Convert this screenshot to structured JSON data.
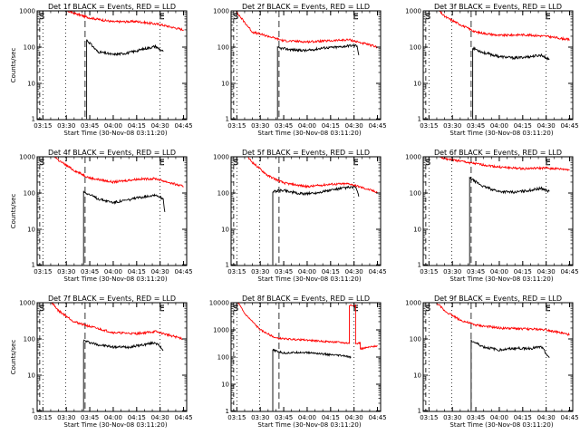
{
  "colors": {
    "events": "#000000",
    "lld": "#ff0000",
    "background": "#ffffff",
    "axes": "#000000"
  },
  "chart_data": [
    {
      "type": "line",
      "title": "Det 1f BLACK = Events, RED = LLD",
      "xlabel": "Start Time (30-Nov-08 03:11:20)",
      "ylabel": "Counts/sec",
      "yscale": "log",
      "ylim": [
        1,
        1000
      ],
      "xlim": [
        "03:11:20",
        "04:47:00"
      ],
      "x_ticks": [
        "03:15",
        "03:30",
        "03:45",
        "04:00",
        "04:15",
        "04:30",
        "04:45"
      ],
      "y_ticks": [
        "1",
        "10",
        "100",
        "1000"
      ],
      "markers": [
        {
          "label": "S",
          "time": "03:15"
        },
        {
          "label": "E",
          "time": "04:30"
        }
      ],
      "events_x": [
        "03:43",
        "03:50",
        "04:00",
        "04:10",
        "04:20",
        "04:27",
        "04:32"
      ],
      "events_y": [
        160,
        75,
        62,
        70,
        90,
        105,
        75
      ],
      "lld_x": [
        "03:11",
        "03:15",
        "03:25",
        "03:35",
        "03:45",
        "04:00",
        "04:15",
        "04:30",
        "04:45"
      ],
      "lld_y": [
        8000,
        2200,
        1200,
        860,
        640,
        500,
        510,
        420,
        300
      ]
    },
    {
      "type": "line",
      "title": "Det 2f BLACK = Events, RED = LLD",
      "xlabel": "Start Time (30-Nov-08 03:11:20)",
      "ylabel": "",
      "yscale": "log",
      "ylim": [
        1,
        1000
      ],
      "xlim": [
        "03:11:20",
        "04:47:00"
      ],
      "x_ticks": [
        "03:15",
        "03:30",
        "03:45",
        "04:00",
        "04:15",
        "04:30",
        "04:45"
      ],
      "y_ticks": [
        "1",
        "10",
        "100",
        "1000"
      ],
      "markers": [
        {
          "label": "S",
          "time": "03:15"
        },
        {
          "label": "E",
          "time": "04:30"
        }
      ],
      "events_x": [
        "03:41",
        "03:50",
        "04:00",
        "04:10",
        "04:20",
        "04:27",
        "04:32",
        "04:33"
      ],
      "events_y": [
        95,
        85,
        80,
        95,
        100,
        110,
        110,
        60
      ],
      "lld_x": [
        "03:11",
        "03:15",
        "03:25",
        "03:35",
        "03:45",
        "04:00",
        "04:15",
        "04:27",
        "04:45"
      ],
      "lld_y": [
        6000,
        900,
        260,
        200,
        150,
        140,
        150,
        160,
        100
      ]
    },
    {
      "type": "line",
      "title": "Det 3f BLACK = Events, RED = LLD",
      "xlabel": "Start Time (30-Nov-08 03:11:20)",
      "ylabel": "",
      "yscale": "log",
      "ylim": [
        1,
        1000
      ],
      "xlim": [
        "03:11:20",
        "04:47:00"
      ],
      "x_ticks": [
        "03:15",
        "03:30",
        "03:45",
        "04:00",
        "04:15",
        "04:30",
        "04:45"
      ],
      "y_ticks": [
        "1",
        "10",
        "100",
        "1000"
      ],
      "markers": [
        {
          "label": "S",
          "time": "03:15"
        },
        {
          "label": "E",
          "time": "04:30"
        }
      ],
      "events_x": [
        "03:43",
        "03:50",
        "04:00",
        "04:10",
        "04:20",
        "04:27",
        "04:32"
      ],
      "events_y": [
        95,
        70,
        55,
        50,
        55,
        60,
        45
      ],
      "lld_x": [
        "03:11",
        "03:15",
        "03:25",
        "03:35",
        "03:45",
        "04:00",
        "04:15",
        "04:30",
        "04:45"
      ],
      "lld_y": [
        6000,
        2000,
        700,
        420,
        260,
        210,
        220,
        200,
        160
      ]
    },
    {
      "type": "line",
      "title": "Det 4f BLACK = Events, RED = LLD",
      "xlabel": "Start Time (30-Nov-08 03:11:20)",
      "ylabel": "Counts/sec",
      "yscale": "log",
      "ylim": [
        1,
        1000
      ],
      "xlim": [
        "03:11:20",
        "04:47:00"
      ],
      "x_ticks": [
        "03:15",
        "03:30",
        "03:45",
        "04:00",
        "04:15",
        "04:30",
        "04:45"
      ],
      "y_ticks": [
        "1",
        "10",
        "100",
        "1000"
      ],
      "markers": [
        {
          "label": "S",
          "time": "03:15"
        },
        {
          "label": "E",
          "time": "04:30"
        }
      ],
      "events_x": [
        "03:41",
        "03:50",
        "04:00",
        "04:10",
        "04:20",
        "04:27",
        "04:32",
        "04:33"
      ],
      "events_y": [
        110,
        70,
        55,
        65,
        80,
        90,
        70,
        30
      ],
      "lld_x": [
        "03:11",
        "03:15",
        "03:25",
        "03:35",
        "03:45",
        "04:00",
        "04:15",
        "04:27",
        "04:45"
      ],
      "lld_y": [
        6000,
        2200,
        800,
        420,
        260,
        200,
        240,
        250,
        150
      ]
    },
    {
      "type": "line",
      "title": "Det 5f BLACK = Events, RED = LLD",
      "xlabel": "Start Time (30-Nov-08 03:11:20)",
      "ylabel": "",
      "yscale": "log",
      "ylim": [
        1,
        1000
      ],
      "xlim": [
        "03:11:20",
        "04:47:00"
      ],
      "x_ticks": [
        "03:15",
        "03:30",
        "03:45",
        "04:00",
        "04:15",
        "04:30",
        "04:45"
      ],
      "y_ticks": [
        "1",
        "10",
        "100",
        "1000"
      ],
      "markers": [
        {
          "label": "S",
          "time": "03:15"
        },
        {
          "label": "E",
          "time": "04:30"
        }
      ],
      "events_x": [
        "03:38",
        "03:45",
        "03:55",
        "04:05",
        "04:15",
        "04:25",
        "04:31",
        "04:33"
      ],
      "events_y": [
        110,
        120,
        95,
        100,
        120,
        140,
        145,
        80
      ],
      "lld_x": [
        "03:11",
        "03:15",
        "03:25",
        "03:35",
        "03:45",
        "04:00",
        "04:15",
        "04:27",
        "04:45"
      ],
      "lld_y": [
        6000,
        2200,
        700,
        300,
        190,
        150,
        175,
        180,
        105
      ]
    },
    {
      "type": "line",
      "title": "Det 6f BLACK = Events, RED = LLD",
      "xlabel": "Start Time (30-Nov-08 03:11:20)",
      "ylabel": "",
      "yscale": "log",
      "ylim": [
        1,
        1000
      ],
      "xlim": [
        "03:11:20",
        "04:47:00"
      ],
      "x_ticks": [
        "03:15",
        "03:30",
        "03:45",
        "04:00",
        "04:15",
        "04:30",
        "04:45"
      ],
      "y_ticks": [
        "1",
        "10",
        "100",
        "1000"
      ],
      "markers": [
        {
          "label": "S",
          "time": "03:15"
        },
        {
          "label": "E",
          "time": "04:30"
        }
      ],
      "events_x": [
        "03:41",
        "03:50",
        "04:00",
        "04:10",
        "04:20",
        "04:27",
        "04:32"
      ],
      "events_y": [
        260,
        150,
        110,
        105,
        120,
        135,
        110
      ],
      "lld_x": [
        "03:11",
        "03:15",
        "03:25",
        "03:35",
        "03:45",
        "04:00",
        "04:15",
        "04:30",
        "04:45"
      ],
      "lld_y": [
        3000,
        1400,
        900,
        760,
        640,
        520,
        470,
        490,
        440
      ]
    },
    {
      "type": "line",
      "title": "Det 7f BLACK = Events, RED = LLD",
      "xlabel": "Start Time (30-Nov-08 03:11:20)",
      "ylabel": "Counts/sec",
      "yscale": "log",
      "ylim": [
        1,
        1000
      ],
      "xlim": [
        "03:11:20",
        "04:47:00"
      ],
      "x_ticks": [
        "03:15",
        "03:30",
        "03:45",
        "04:00",
        "04:15",
        "04:30",
        "04:45"
      ],
      "y_ticks": [
        "1",
        "10",
        "100",
        "1000"
      ],
      "markers": [
        {
          "label": "S",
          "time": "03:15"
        },
        {
          "label": "E",
          "time": "04:30"
        }
      ],
      "events_x": [
        "03:41",
        "03:50",
        "04:00",
        "04:10",
        "04:20",
        "04:27",
        "04:32"
      ],
      "events_y": [
        90,
        70,
        60,
        60,
        70,
        80,
        50
      ],
      "lld_x": [
        "03:11",
        "03:15",
        "03:25",
        "03:35",
        "03:45",
        "04:00",
        "04:15",
        "04:27",
        "04:45"
      ],
      "lld_y": [
        6000,
        2000,
        600,
        300,
        220,
        150,
        140,
        160,
        100
      ]
    },
    {
      "type": "line",
      "title": "Det 8f BLACK = Events, RED = LLD",
      "xlabel": "Start Time (30-Nov-08 03:11:20)",
      "ylabel": "",
      "yscale": "log",
      "ylim": [
        1,
        10000
      ],
      "xlim": [
        "03:11:20",
        "04:47:00"
      ],
      "x_ticks": [
        "03:15",
        "03:30",
        "03:45",
        "04:00",
        "04:15",
        "04:30",
        "04:45"
      ],
      "y_ticks": [
        "1",
        "10",
        "100",
        "1000",
        "10000"
      ],
      "markers": [
        {
          "label": "S",
          "time": "03:15"
        },
        {
          "label": "E",
          "time": "04:30"
        }
      ],
      "events_x": [
        "03:38",
        "03:45",
        "03:55",
        "04:05",
        "04:15",
        "04:24",
        "04:28"
      ],
      "events_y": [
        180,
        140,
        150,
        140,
        120,
        110,
        95
      ],
      "lld_x": [
        "03:11",
        "03:15",
        "03:20",
        "03:30",
        "03:40",
        "03:50",
        "04:00",
        "04:10",
        "04:20",
        "04:27",
        "04:27",
        "04:31",
        "04:31",
        "04:34",
        "04:34",
        "04:45"
      ],
      "lld_y": [
        20000,
        12000,
        4000,
        1000,
        500,
        450,
        420,
        380,
        350,
        320,
        8000,
        8000,
        300,
        340,
        200,
        260
      ]
    },
    {
      "type": "line",
      "title": "Det 9f BLACK = Events, RED = LLD",
      "xlabel": "Start Time (30-Nov-08 03:11:20)",
      "ylabel": "",
      "yscale": "log",
      "ylim": [
        1,
        1000
      ],
      "xlim": [
        "03:11:20",
        "04:47:00"
      ],
      "x_ticks": [
        "03:15",
        "03:30",
        "03:45",
        "04:00",
        "04:15",
        "04:30",
        "04:45"
      ],
      "y_ticks": [
        "1",
        "10",
        "100",
        "1000"
      ],
      "markers": [
        {
          "label": "S",
          "time": "03:15"
        },
        {
          "label": "E",
          "time": "04:30"
        }
      ],
      "events_x": [
        "03:42",
        "03:50",
        "04:00",
        "04:10",
        "04:20",
        "04:27",
        "04:32"
      ],
      "events_y": [
        90,
        60,
        50,
        55,
        55,
        60,
        30
      ],
      "lld_x": [
        "03:11",
        "03:15",
        "03:25",
        "03:35",
        "03:45",
        "04:00",
        "04:15",
        "04:30",
        "04:45"
      ],
      "lld_y": [
        6000,
        1600,
        600,
        330,
        240,
        200,
        190,
        180,
        130
      ]
    }
  ]
}
